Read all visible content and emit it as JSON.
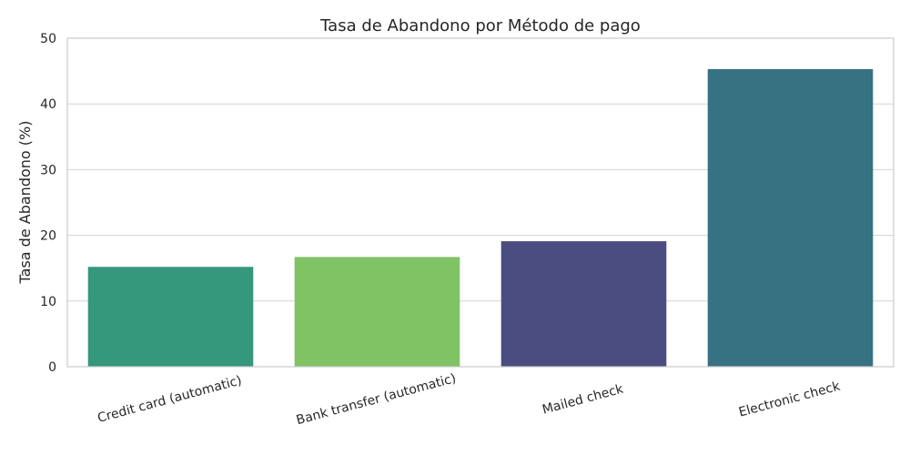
{
  "chart_data": {
    "type": "bar",
    "title": "Tasa de Abandono por Método de pago",
    "xlabel": "",
    "ylabel": "Tasa de Abandono (%)",
    "categories": [
      "Credit card (automatic)",
      "Bank transfer (automatic)",
      "Mailed check",
      "Electronic check"
    ],
    "values": [
      15.2,
      16.7,
      19.1,
      45.3
    ],
    "colors": [
      "#35977b",
      "#80c365",
      "#4b4c7f",
      "#377282"
    ],
    "ylim": [
      0,
      50
    ],
    "yticks": [
      0,
      10,
      20,
      30,
      40,
      50
    ],
    "grid": "horizontal",
    "legend": "none"
  }
}
